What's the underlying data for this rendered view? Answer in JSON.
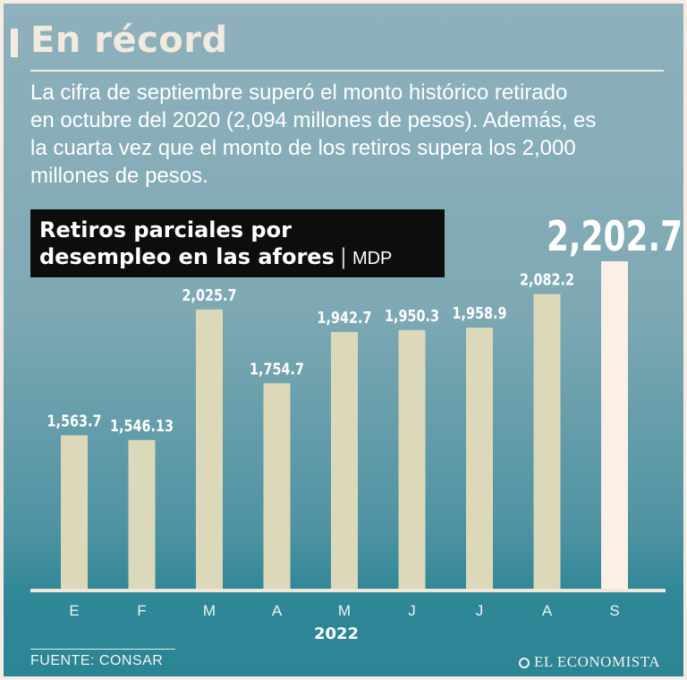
{
  "header": {
    "title": "En récord",
    "intro": " La cifra de septiembre superó el monto histórico retirado\nen octubre del 2020 (2,094 millones de pesos). Además, es\nla cuarta vez que el monto de los retiros supera los 2,000\nmillones de pesos."
  },
  "chart_label": {
    "line1": "Retiros parciales por",
    "line2": "desempleo en las afores",
    "separator": "|",
    "unit": "MDP"
  },
  "chart_data": {
    "type": "bar",
    "title": "Retiros parciales por desempleo en las afores",
    "ylabel": "MDP",
    "xlabel": "2022",
    "categories": [
      "E",
      "F",
      "M",
      "A",
      "M",
      "J",
      "J",
      "A",
      "S"
    ],
    "values": [
      1563.7,
      1546.13,
      2025.7,
      1754.7,
      1942.7,
      1950.3,
      1958.9,
      2082.2,
      2202.7
    ],
    "value_labels": [
      "1,563.7",
      "1,546.13",
      "2,025.7",
      "1,754.7",
      "1,942.7",
      "1,950.3",
      "1,958.9",
      "2,082.2",
      "2,202.7"
    ],
    "highlight_index": 8,
    "ylim": [
      1000,
      2202.7
    ],
    "grid": false,
    "colors": {
      "bar": "#dcd8ba",
      "highlight": "#fbf0e6",
      "baseline": "#efe7d8"
    }
  },
  "footer": {
    "source": "FUENTE: CONSAR",
    "brand": "EL ECONOMISTA",
    "brand_icon": "globe-logo-icon"
  }
}
